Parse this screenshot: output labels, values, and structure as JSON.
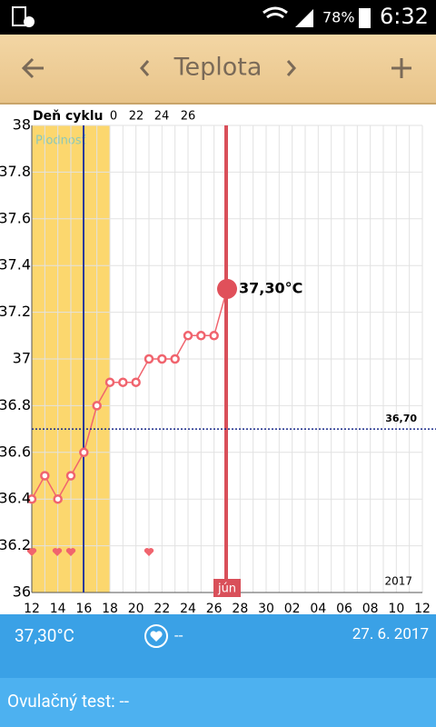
{
  "status_bar": {
    "battery": "78%",
    "time": "6:32"
  },
  "header": {
    "title": "Teplota"
  },
  "chart_data": {
    "type": "line",
    "axis_label": "Deň cyklu",
    "cycle_days": [
      "0",
      "22",
      "24",
      "26"
    ],
    "fertility_label": "Plodnosť",
    "month_label": "jún",
    "year_label": "2017",
    "categories": [
      "12",
      null,
      "14",
      null,
      "16",
      null,
      "18",
      null,
      "20",
      null,
      "22",
      null,
      "24",
      null,
      "26",
      null,
      "28",
      null,
      "30",
      null,
      "02",
      null,
      "04",
      null,
      "06",
      null,
      "08",
      null,
      "10",
      null,
      "12"
    ],
    "series": [
      {
        "color": "#f0646e",
        "values": [
          36.4,
          36.5,
          36.4,
          36.5,
          36.6,
          36.8,
          36.9,
          36.9,
          36.9,
          37.0,
          37.0,
          37.0,
          37.1,
          37.1,
          37.1,
          37.3,
          null,
          null,
          null,
          null,
          null,
          null,
          null,
          null,
          null,
          null,
          null,
          null,
          null,
          null,
          null
        ],
        "value_labels": [
          null,
          null,
          null,
          null,
          null,
          null,
          null,
          null,
          null,
          null,
          null,
          null,
          null,
          null,
          null,
          "37,30°C",
          null,
          null,
          null,
          null,
          null,
          null,
          null,
          null,
          null,
          null,
          null,
          null,
          null,
          null,
          null
        ]
      }
    ],
    "reference_line": {
      "value": 36.7,
      "label": "36,70"
    },
    "ylim": [
      36,
      38
    ],
    "yticks": [
      36,
      36.2,
      36.4,
      36.6,
      36.8,
      37,
      37.2,
      37.4,
      37.6,
      37.8,
      38
    ],
    "grid": true
  },
  "footer": {
    "temperature": "37,30°C",
    "intercourse": "--",
    "date": "27. 6. 2017",
    "ovulation_test": "Ovulačný test: --"
  }
}
